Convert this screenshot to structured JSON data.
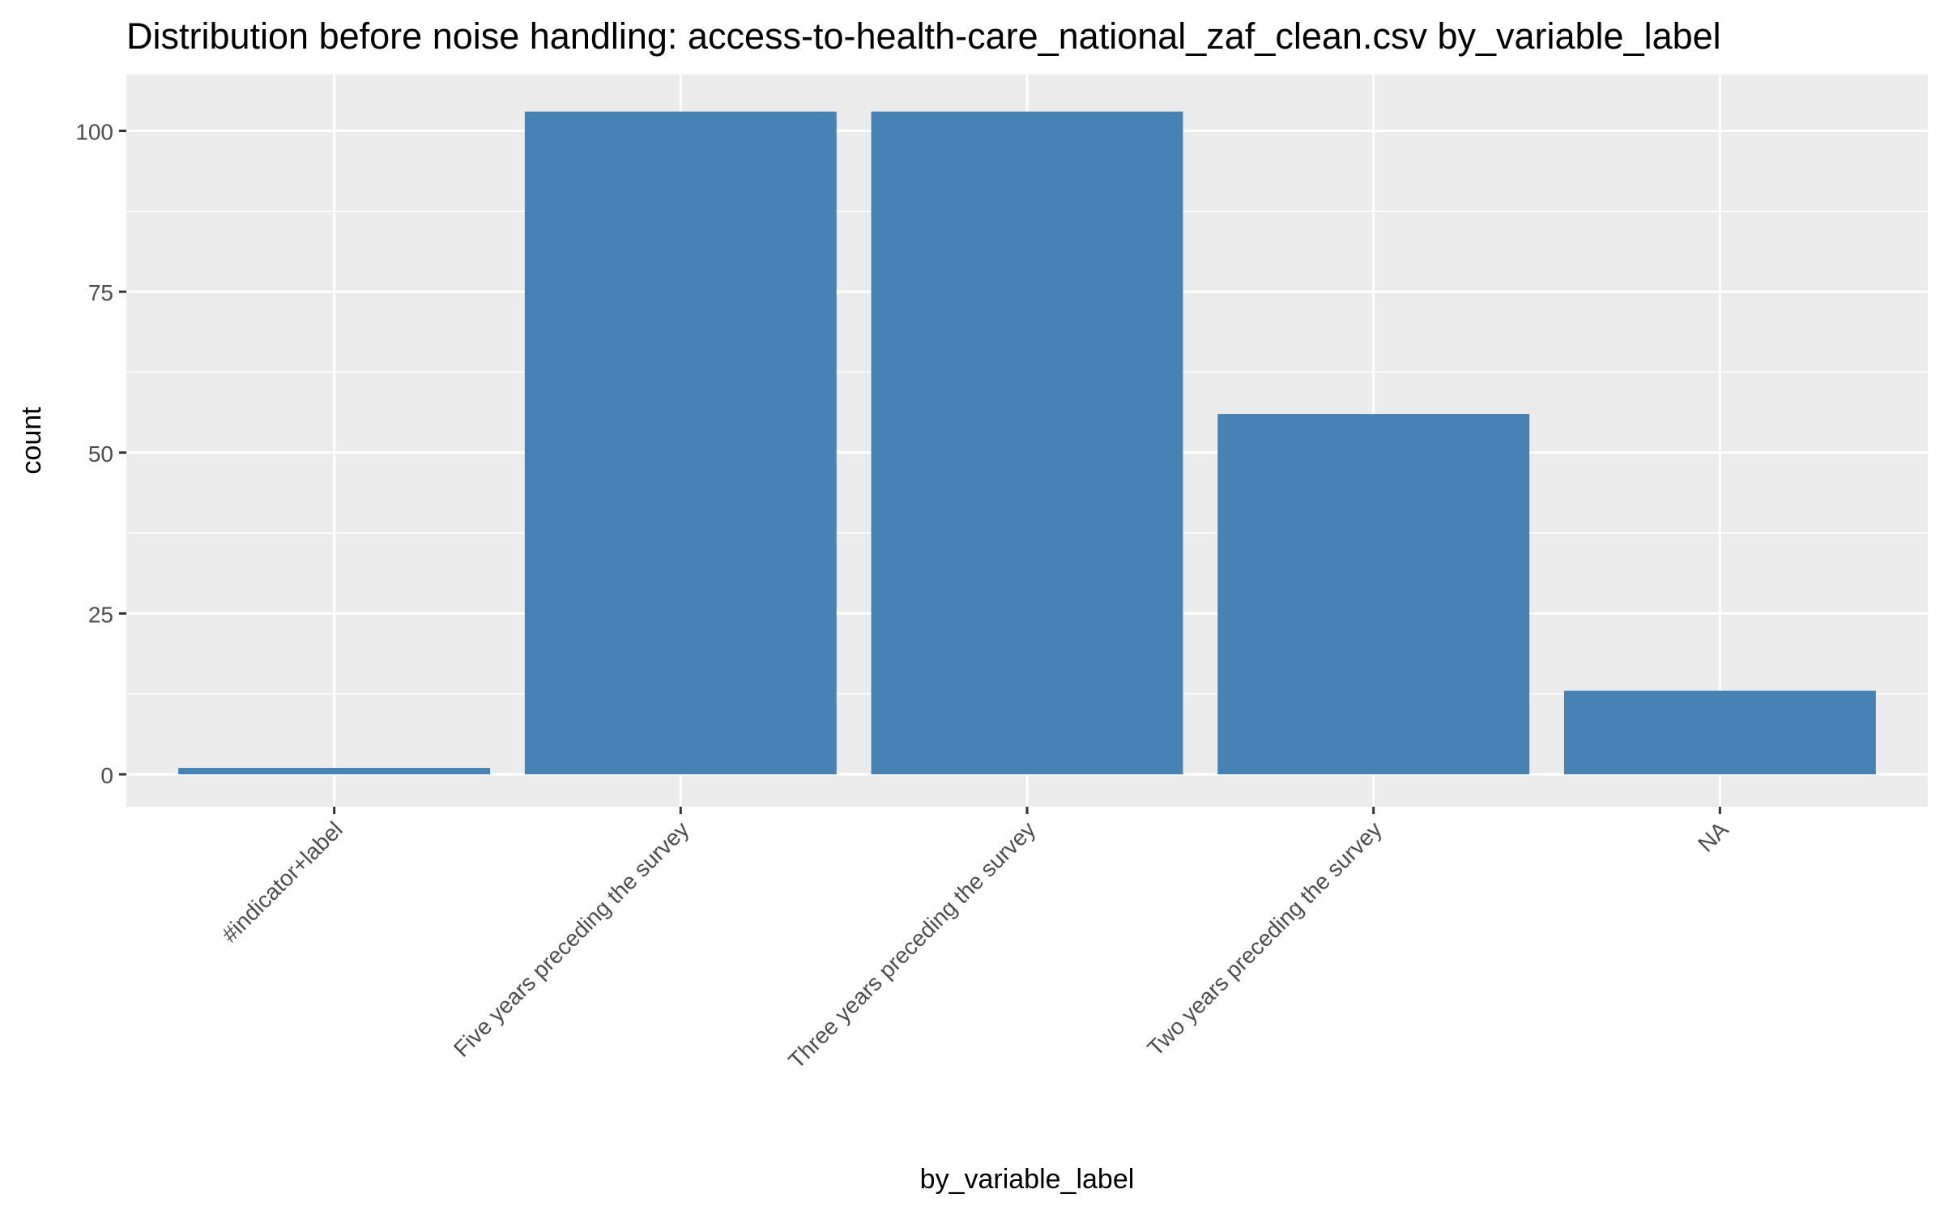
{
  "chart_data": {
    "type": "bar",
    "title": "Distribution before noise handling: access-to-health-care_national_zaf_clean.csv by_variable_label",
    "xlabel": "by_variable_label",
    "ylabel": "count",
    "categories": [
      "#indicator+label",
      "Five years preceding the survey",
      "Three years preceding the survey",
      "Two years preceding the survey",
      "NA"
    ],
    "values": [
      1,
      103,
      103,
      56,
      13
    ],
    "ylim": [
      0,
      108
    ],
    "yticks": [
      0,
      25,
      50,
      75,
      100
    ],
    "grid": true,
    "legend": "none",
    "colors": {
      "bar": "#4682b4",
      "panel": "#ebebeb",
      "grid": "#ffffff",
      "text": "#000000",
      "tick_text": "#4d4d4d",
      "tick_mark": "#333333"
    }
  }
}
